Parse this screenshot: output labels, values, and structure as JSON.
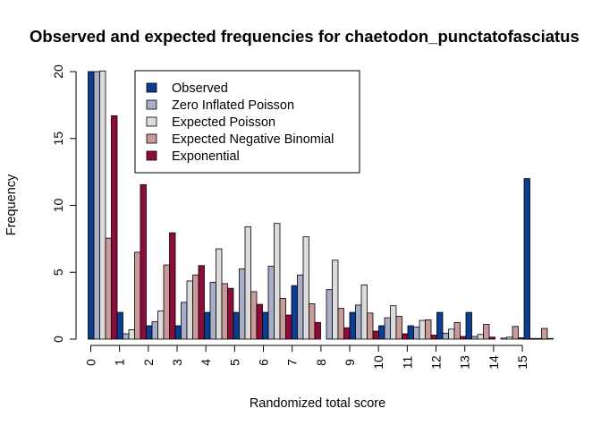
{
  "chart_data": {
    "type": "bar",
    "title": "Observed and expected frequencies for chaetodon_punctatofasciatus",
    "xlabel": "Randomized total score",
    "ylabel": "Frequency",
    "ylim": [
      0,
      20
    ],
    "yticks": [
      0,
      5,
      10,
      15,
      20
    ],
    "categories": [
      "0",
      "1",
      "2",
      "3",
      "4",
      "5",
      "6",
      "7",
      "8",
      "9",
      "10",
      "11",
      "12",
      "13",
      "14",
      "15"
    ],
    "legend_position": "top-left-inside",
    "series": [
      {
        "name": "Observed",
        "color": "#0b3d91",
        "values": [
          20,
          2,
          1,
          1,
          2,
          2,
          2,
          4,
          0,
          2,
          1,
          1,
          2,
          2,
          0,
          12
        ]
      },
      {
        "name": "Zero Inflated Poisson",
        "color": "#a9aec8",
        "values": [
          20,
          0.4,
          1.3,
          2.75,
          4.25,
          5.25,
          5.45,
          4.8,
          3.7,
          2.55,
          1.6,
          0.9,
          0.45,
          0.2,
          0.08,
          0.05
        ]
      },
      {
        "name": "Expected Poisson",
        "color": "#dcdcdc",
        "values": [
          20.05,
          0.7,
          2.1,
          4.35,
          6.75,
          8.4,
          8.65,
          7.65,
          5.9,
          4.05,
          2.5,
          1.4,
          0.75,
          0.35,
          0.15,
          0.05
        ]
      },
      {
        "name": "Expected Negative Binomial",
        "color": "#c99a98",
        "values": [
          7.55,
          6.5,
          5.55,
          4.8,
          4.15,
          3.55,
          3.05,
          2.65,
          2.3,
          1.95,
          1.7,
          1.45,
          1.25,
          1.1,
          0.95,
          0.8
        ]
      },
      {
        "name": "Exponential",
        "color": "#8e0b3b",
        "values": [
          16.7,
          11.55,
          7.95,
          5.5,
          3.8,
          2.6,
          1.8,
          1.25,
          0.85,
          0.6,
          0.4,
          0.3,
          0.2,
          0.15,
          0.1,
          0.05
        ]
      }
    ]
  }
}
